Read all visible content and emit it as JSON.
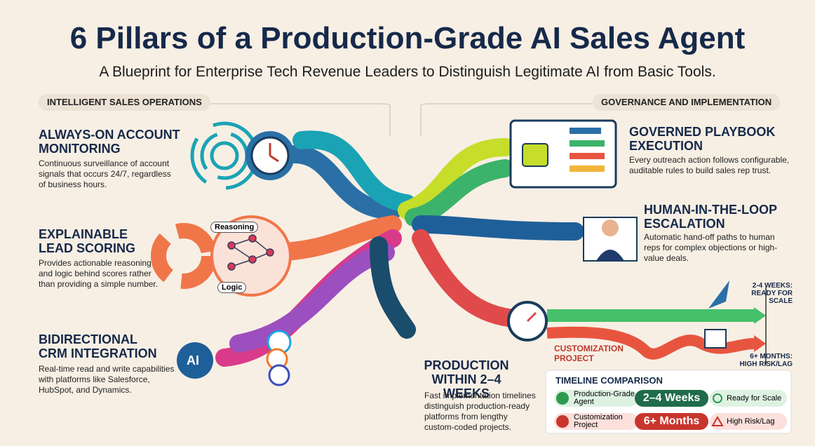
{
  "header": {
    "title": "6 Pillars of a Production-Grade AI Sales Agent",
    "subtitle": "A Blueprint for Enterprise Tech Revenue Leaders to Distinguish Legitimate AI from Basic Tools."
  },
  "sections": {
    "left": "INTELLIGENT SALES OPERATIONS",
    "right": "GOVERNANCE AND IMPLEMENTATION"
  },
  "pillars": [
    {
      "title": "ALWAYS-ON ACCOUNT MONITORING",
      "description": "Continuous surveillance of account signals that occurs 24/7, regardless of business hours."
    },
    {
      "title": "EXPLAINABLE LEAD SCORING",
      "description": "Provides actionable reasoning and logic behind scores rather than providing a simple number."
    },
    {
      "title": "BIDIRECTIONAL CRM INTEGRATION",
      "description": "Real-time read and write capabilities with platforms like Salesforce, HubSpot, and Dynamics."
    },
    {
      "title": "GOVERNED PLAYBOOK EXECUTION",
      "description": "Every outreach action follows configurable, auditable rules to build sales rep trust."
    },
    {
      "title": "HUMAN-IN-THE-LOOP ESCALATION",
      "description": "Automatic hand-off paths to human reps for complex objections or high-value deals."
    },
    {
      "title": "PRODUCTION WITHIN 2–4 WEEKS",
      "description": "Fast implementation timelines distinguish production-ready platforms from lengthy custom-coded projects."
    }
  ],
  "icon_labels": {
    "reasoning": "Reasoning",
    "logic": "Logic",
    "ai": "AI"
  },
  "timeline": {
    "fast": "2-4 WEEKS: READY FOR SCALE",
    "custom": "CUSTOMIZATION PROJECT",
    "slow": "6+ MONTHS: HIGH RISK/LAG"
  },
  "comparison": {
    "title": "TIMELINE COMPARISON",
    "rows": [
      [
        "Production-Grade Agent",
        "2–4 Weeks",
        "Ready for Scale"
      ],
      [
        "Customization Project",
        "6+ Months",
        "High Risk/Lag"
      ]
    ]
  }
}
